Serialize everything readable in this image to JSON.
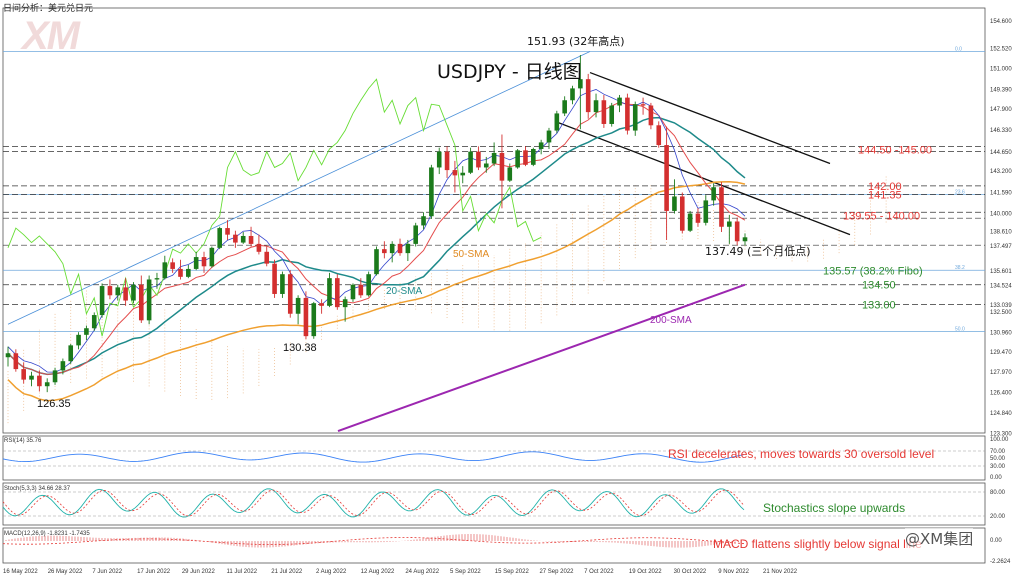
{
  "header": {
    "title": "日间分析：美元兑日元"
  },
  "watermark": {
    "logo_text": "XM",
    "weibo_text": "@XM集团"
  },
  "chart_data": {
    "type": "candlestick",
    "symbol_title": "USDJPY - 日线图",
    "price_ylim": [
      123.25,
      155.5
    ],
    "price_ticks": [
      "154.600",
      "152.520",
      "151.000",
      "149.390",
      "147.900",
      "146.330",
      "144.650",
      "143.200",
      "141.590",
      "140.000",
      "138.610",
      "137.497",
      "135.601",
      "134.524",
      "133.039",
      "132.500",
      "130.960",
      "129.470",
      "127.970",
      "126.400",
      "124.840",
      "123.300"
    ],
    "x_labels": [
      "16 May 2022",
      "26 May 2022",
      "7 Jun 2022",
      "17 Jun 2022",
      "29 Jun 2022",
      "11 Jul 2022",
      "21 Jul 2022",
      "2 Aug 2022",
      "12 Aug 2022",
      "24 Aug 2022",
      "5 Sep 2022",
      "15 Sep 2022",
      "27 Sep 2022",
      "7 Oct 2022",
      "19 Oct 2022",
      "30 Oct 2022",
      "9 Nov 2022",
      "21 Nov 2022"
    ],
    "candles": [
      [
        129.0,
        129.8,
        128.3,
        129.3
      ],
      [
        129.3,
        129.6,
        127.9,
        128.1
      ],
      [
        128.1,
        128.6,
        127.0,
        127.3
      ],
      [
        127.3,
        127.9,
        126.8,
        127.6
      ],
      [
        127.6,
        128.0,
        126.4,
        126.8
      ],
      [
        126.8,
        127.4,
        126.35,
        127.1
      ],
      [
        127.1,
        128.2,
        126.9,
        128.0
      ],
      [
        128.0,
        128.9,
        127.7,
        128.7
      ],
      [
        128.7,
        130.0,
        128.5,
        129.9
      ],
      [
        129.9,
        130.9,
        129.6,
        130.7
      ],
      [
        130.7,
        131.4,
        130.3,
        131.2
      ],
      [
        131.2,
        132.4,
        131.0,
        132.2
      ],
      [
        132.2,
        134.6,
        132.0,
        134.4
      ],
      [
        134.4,
        134.9,
        133.4,
        133.7
      ],
      [
        133.7,
        134.5,
        133.3,
        134.3
      ],
      [
        134.3,
        135.0,
        132.9,
        133.3
      ],
      [
        133.3,
        134.7,
        133.1,
        134.5
      ],
      [
        134.5,
        135.2,
        131.6,
        131.8
      ],
      [
        131.8,
        135.2,
        131.5,
        134.9
      ],
      [
        134.9,
        135.4,
        134.2,
        135.0
      ],
      [
        135.0,
        136.7,
        134.9,
        136.2
      ],
      [
        136.2,
        136.5,
        135.4,
        135.7
      ],
      [
        135.7,
        136.4,
        134.9,
        135.1
      ],
      [
        135.1,
        136.0,
        135.0,
        135.7
      ],
      [
        135.7,
        137.0,
        135.6,
        136.6
      ],
      [
        136.6,
        137.0,
        135.4,
        135.9
      ],
      [
        135.9,
        137.4,
        135.8,
        137.3
      ],
      [
        137.3,
        138.9,
        137.2,
        138.8
      ],
      [
        138.8,
        139.4,
        137.9,
        138.3
      ],
      [
        138.3,
        138.6,
        137.3,
        137.7
      ],
      [
        137.7,
        138.5,
        137.6,
        138.2
      ],
      [
        138.2,
        138.9,
        137.4,
        137.6
      ],
      [
        137.6,
        138.3,
        136.8,
        137.0
      ],
      [
        137.0,
        137.4,
        135.9,
        136.1
      ],
      [
        136.1,
        136.4,
        133.5,
        133.8
      ],
      [
        133.8,
        135.5,
        133.5,
        135.3
      ],
      [
        135.3,
        135.6,
        132.0,
        132.3
      ],
      [
        132.3,
        133.7,
        131.5,
        133.5
      ],
      [
        133.5,
        134.0,
        130.38,
        130.6
      ],
      [
        130.6,
        133.2,
        130.4,
        133.1
      ],
      [
        133.1,
        133.4,
        132.3,
        132.9
      ],
      [
        132.9,
        135.4,
        132.8,
        135.0
      ],
      [
        135.0,
        135.3,
        132.6,
        132.8
      ],
      [
        132.8,
        133.6,
        131.7,
        133.4
      ],
      [
        133.4,
        134.6,
        133.2,
        134.5
      ],
      [
        134.5,
        135.0,
        133.5,
        133.7
      ],
      [
        133.7,
        135.5,
        133.6,
        135.3
      ],
      [
        135.3,
        137.4,
        135.2,
        137.2
      ],
      [
        137.2,
        137.8,
        136.5,
        136.9
      ],
      [
        136.9,
        137.8,
        136.2,
        137.6
      ],
      [
        137.6,
        138.0,
        136.7,
        136.9
      ],
      [
        136.9,
        137.9,
        136.3,
        137.6
      ],
      [
        137.6,
        139.2,
        137.4,
        139.0
      ],
      [
        139.0,
        140.0,
        138.7,
        139.7
      ],
      [
        139.7,
        143.6,
        139.5,
        143.4
      ],
      [
        143.4,
        144.9,
        142.9,
        144.6
      ],
      [
        144.6,
        145.0,
        142.6,
        143.2
      ],
      [
        143.2,
        143.9,
        141.5,
        142.8
      ],
      [
        142.8,
        143.5,
        142.2,
        143.0
      ],
      [
        143.0,
        144.9,
        142.9,
        144.6
      ],
      [
        144.6,
        145.0,
        143.2,
        143.4
      ],
      [
        143.4,
        144.2,
        143.0,
        143.7
      ],
      [
        143.7,
        145.3,
        143.5,
        144.5
      ],
      [
        144.5,
        145.9,
        140.3,
        142.4
      ],
      [
        142.4,
        143.7,
        142.3,
        143.4
      ],
      [
        143.4,
        144.8,
        143.3,
        144.7
      ],
      [
        144.7,
        145.0,
        143.5,
        143.6
      ],
      [
        143.6,
        144.9,
        143.5,
        144.8
      ],
      [
        144.8,
        145.5,
        144.4,
        145.3
      ],
      [
        145.3,
        146.4,
        144.8,
        146.2
      ],
      [
        146.2,
        147.7,
        146.0,
        147.5
      ],
      [
        147.5,
        148.8,
        147.3,
        148.5
      ],
      [
        148.5,
        149.6,
        148.2,
        149.4
      ],
      [
        149.4,
        151.93,
        146.3,
        150.1
      ],
      [
        150.1,
        150.5,
        147.1,
        147.6
      ],
      [
        147.6,
        149.0,
        147.2,
        148.5
      ],
      [
        148.5,
        148.9,
        146.4,
        146.7
      ],
      [
        146.7,
        148.3,
        146.5,
        148.1
      ],
      [
        148.1,
        148.9,
        147.6,
        148.7
      ],
      [
        148.7,
        149.0,
        145.9,
        146.2
      ],
      [
        146.2,
        148.4,
        145.8,
        148.2
      ],
      [
        148.2,
        148.7,
        147.4,
        148.1
      ],
      [
        148.1,
        148.3,
        146.3,
        146.6
      ],
      [
        146.6,
        146.9,
        144.9,
        145.1
      ],
      [
        145.1,
        146.5,
        137.9,
        140.1
      ],
      [
        140.1,
        142.5,
        139.9,
        141.2
      ],
      [
        141.2,
        141.5,
        138.4,
        138.6
      ],
      [
        138.6,
        140.1,
        138.5,
        139.9
      ],
      [
        139.9,
        140.3,
        138.9,
        139.2
      ],
      [
        139.2,
        141.3,
        139.0,
        140.9
      ],
      [
        140.9,
        142.2,
        140.5,
        141.9
      ],
      [
        141.9,
        142.3,
        138.5,
        138.9
      ],
      [
        138.9,
        139.8,
        137.6,
        139.3
      ],
      [
        139.3,
        139.6,
        137.5,
        137.8
      ],
      [
        137.8,
        138.4,
        137.49,
        138.1
      ]
    ],
    "annotations": {
      "price_labels": [
        "151.93 (32年高点)",
        "130.38",
        "126.35",
        "137.49 (三个月低点)"
      ],
      "levels": [
        {
          "label": "144.50 -145.00",
          "price": 144.75,
          "color": "#e53935"
        },
        {
          "label": "142.00",
          "price": 142.0,
          "color": "#e53935"
        },
        {
          "label": "141.35",
          "price": 141.35,
          "color": "#e53935"
        },
        {
          "label": "139.55 - 140.00",
          "price": 139.75,
          "color": "#e53935"
        },
        {
          "label": "135.57 (38.2% Fibo)",
          "price": 135.57,
          "color": "#2e8b2e"
        },
        {
          "label": "134.50",
          "price": 134.5,
          "color": "#2e8b2e"
        },
        {
          "label": "133.00",
          "price": 133.0,
          "color": "#2e8b2e"
        }
      ],
      "ma_labels": [
        "50-SMA",
        "20-SMA",
        "200-SMA"
      ],
      "fibo_tags": [
        "0.0",
        "23.6",
        "38.2",
        "50.0"
      ]
    },
    "indicators": {
      "rsi": {
        "name": "RSI(14) 35.76",
        "value": 35.76,
        "ticks": [
          "100.00",
          "70.00",
          "50.00",
          "30.00",
          "0.00"
        ],
        "note": "RSI decelerates, moves towards 30 oversold level"
      },
      "stoch": {
        "name": "Stoch(5,3,3) 34.66 28.37",
        "k": 34.66,
        "d": 28.37,
        "ticks": [
          "80.00",
          "20.00"
        ],
        "note": "Stochastics slope upwards"
      },
      "macd": {
        "name": "MACD(12,26,9) -1.8231 -1.7435",
        "macd": -1.8231,
        "signal": -1.7435,
        "ticks": [
          "0.00",
          "-2.2624"
        ],
        "note": "MACD flattens slightly below signal line"
      }
    },
    "colors": {
      "bull": "#1b7a1b",
      "bear": "#d32f2f",
      "sma20": "#1e8a8a",
      "sma50": "#f0a030",
      "sma200": "#9c27b0",
      "lagging": "#66dd33",
      "kijun": "#e44d4d",
      "tenkan": "#3344cc",
      "cloud": "#e8b07a"
    }
  }
}
